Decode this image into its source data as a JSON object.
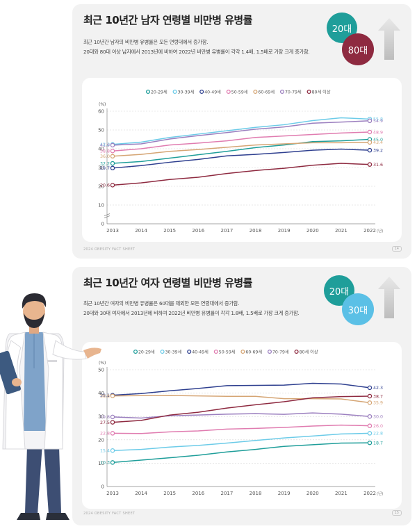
{
  "top": {
    "title": "최근 10년간 남자 연령별 비만병 유병률",
    "desc1": "최근 10년간 남자의 비만병 유병률은 모든 연령대에서 증가함.",
    "desc2": "20대와 80대 이상 남자에서 2013년에 비하여 2022년 비만병 유병률이 각각 1.4배, 1.5배로 가장 크게 증가함.",
    "badge1": "20대",
    "badge2": "80대",
    "footer": "2024 OBESITY FACT SHEET",
    "page": "14",
    "badge1_color": "#1f9e9a",
    "badge2_color": "#8e2a40"
  },
  "bottom": {
    "title": "최근 10년간 여자 연령별 비만병 유병률",
    "desc1": "최근 10년간 여자의 비만병 유병률은 60대를 제외한 모든 연령대에서 증가함.",
    "desc2": "20대와 30대 여자에서 2013년에 비하여 2022년 비만병 유병률이 각각 1.8배, 1.5배로 가장 크게 증가함.",
    "badge1": "20대",
    "badge2": "30대",
    "footer": "2024 OBESITY FACT SHEET",
    "page": "15",
    "badge1_color": "#1f9e9a",
    "badge2_color": "#5bc0e6"
  },
  "chart_data": [
    {
      "type": "line",
      "ylabel": "(%)",
      "xlabel": "(년)",
      "ylim": [
        0,
        60
      ],
      "yticks": [
        0,
        10,
        20,
        30,
        40,
        50,
        60
      ],
      "y_axis_break": true,
      "x": [
        "2013",
        "2014",
        "2015",
        "2016",
        "2017",
        "2018",
        "2019",
        "2020",
        "2021",
        "2022"
      ],
      "legend_position": "top",
      "series": [
        {
          "name": "20-29세",
          "color": "#1f9e9a",
          "values": [
            32.2,
            33.2,
            35.0,
            36.8,
            38.6,
            40.6,
            42.0,
            43.8,
            44.2,
            45.0
          ],
          "start_label": "32.2",
          "end_label": "45.0"
        },
        {
          "name": "30-39세",
          "color": "#6ccbe8",
          "values": [
            42.3,
            43.5,
            46.0,
            47.8,
            49.6,
            51.4,
            52.8,
            55.0,
            56.5,
            55.8
          ],
          "start_label": "42.3",
          "end_label": "55.8"
        },
        {
          "name": "40-49세",
          "color": "#2e3f8f",
          "values": [
            29.7,
            31.0,
            32.8,
            34.3,
            36.2,
            37.0,
            38.0,
            39.2,
            39.8,
            39.2
          ],
          "start_label": "29.7",
          "end_label": "39.2"
        },
        {
          "name": "50-59세",
          "color": "#e07cb0",
          "values": [
            38.8,
            40.0,
            42.0,
            43.0,
            44.2,
            46.0,
            46.8,
            47.6,
            48.4,
            48.9
          ],
          "start_label": "38.8",
          "end_label": "48.9"
        },
        {
          "name": "60-69세",
          "color": "#d5a574",
          "values": [
            36.0,
            37.0,
            38.6,
            39.6,
            40.8,
            42.0,
            42.6,
            43.2,
            43.2,
            43.4
          ],
          "start_label": "36.0",
          "end_label": "43.4"
        },
        {
          "name": "70-79세",
          "color": "#9b7fbf",
          "values": [
            41.9,
            42.6,
            45.2,
            47.0,
            48.6,
            50.4,
            51.6,
            53.6,
            54.2,
            54.9
          ],
          "start_label": "41.9",
          "end_label": "54.9"
        },
        {
          "name": "80세 이상",
          "color": "#8e2a40",
          "values": [
            20.6,
            21.8,
            23.6,
            24.8,
            26.8,
            28.4,
            29.6,
            31.2,
            32.2,
            31.6
          ],
          "start_label": "20.6",
          "end_label": "31.6"
        }
      ]
    },
    {
      "type": "line",
      "ylabel": "(%)",
      "xlabel": "(년)",
      "ylim": [
        0,
        50
      ],
      "yticks": [
        0,
        10,
        20,
        30,
        40,
        50
      ],
      "x": [
        "2013",
        "2014",
        "2015",
        "2016",
        "2017",
        "2018",
        "2019",
        "2020",
        "2021",
        "2022"
      ],
      "legend_position": "top",
      "series": [
        {
          "name": "20-29세",
          "color": "#1f9e9a",
          "values": [
            10.3,
            11.3,
            12.3,
            13.4,
            14.8,
            15.9,
            17.2,
            17.9,
            18.6,
            18.7
          ],
          "start_label": "10.3",
          "end_label": "18.7"
        },
        {
          "name": "30-39세",
          "color": "#6ccbe8",
          "values": [
            15.4,
            15.9,
            16.9,
            17.6,
            18.6,
            19.7,
            20.8,
            21.6,
            22.5,
            22.8
          ],
          "start_label": "15.4",
          "end_label": "22.8"
        },
        {
          "name": "40-49세",
          "color": "#2e3f8f",
          "values": [
            39.1,
            39.8,
            41.0,
            42.0,
            43.2,
            43.3,
            43.4,
            44.2,
            43.9,
            42.3
          ],
          "start_label": "39.1",
          "end_label": "42.3"
        },
        {
          "name": "50-59세",
          "color": "#e07cb0",
          "values": [
            22.8,
            22.7,
            23.4,
            23.8,
            24.6,
            24.9,
            25.3,
            25.9,
            26.3,
            26.0
          ],
          "start_label": "22.8",
          "end_label": "26.0"
        },
        {
          "name": "60-69세",
          "color": "#d5a574",
          "values": [
            38.8,
            38.9,
            39.0,
            38.8,
            38.6,
            38.6,
            37.6,
            37.6,
            37.5,
            35.9
          ],
          "start_label": "38.8",
          "end_label": "35.9"
        },
        {
          "name": "70-79세",
          "color": "#9b7fbf",
          "values": [
            29.8,
            29.3,
            30.3,
            30.6,
            31.0,
            31.2,
            30.9,
            31.5,
            31.0,
            30.0
          ],
          "start_label": "29.8",
          "end_label": "30.0"
        },
        {
          "name": "80세 이상",
          "color": "#8e2a40",
          "values": [
            27.5,
            28.3,
            30.6,
            31.8,
            33.6,
            35.0,
            36.3,
            38.0,
            38.5,
            38.7
          ],
          "start_label": "27.5",
          "end_label": "38.7"
        }
      ]
    }
  ]
}
